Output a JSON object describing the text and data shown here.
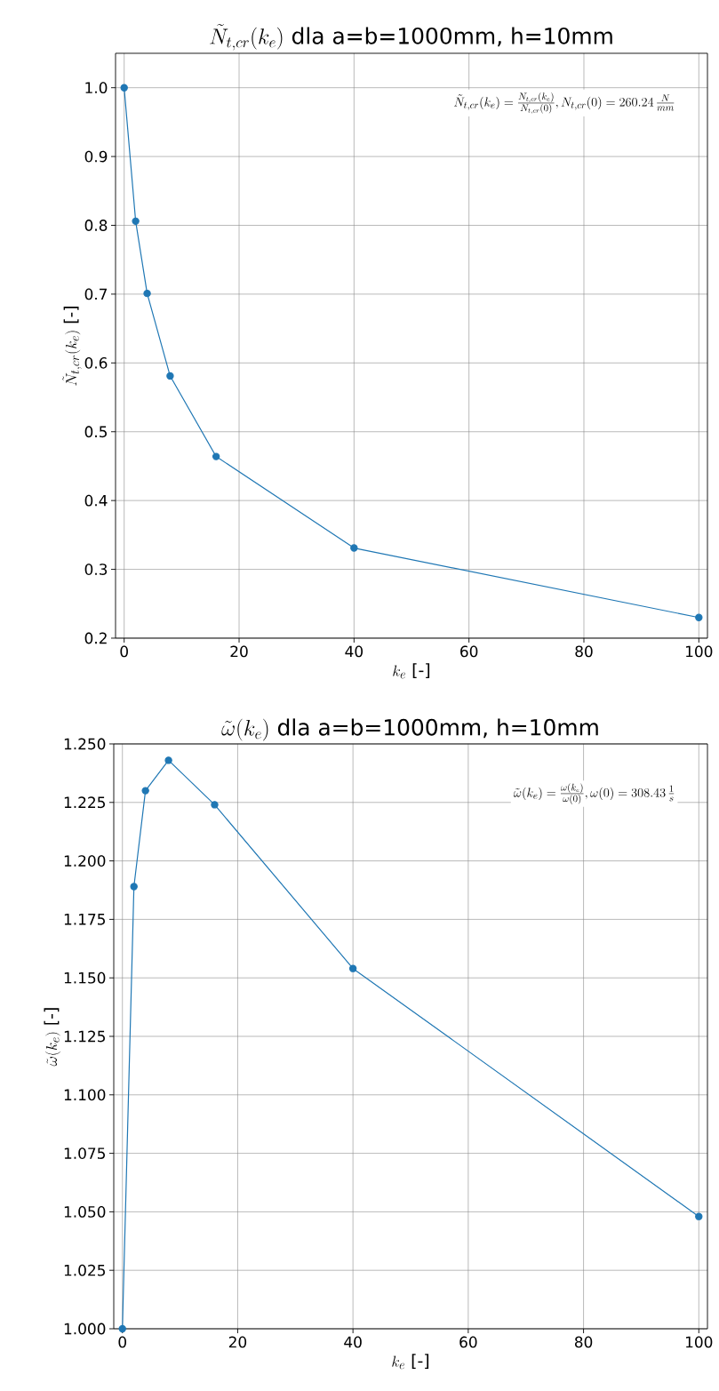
{
  "chart_data": [
    {
      "type": "line",
      "title": "\\tilde{N}_{t,cr}(k_e)\\text{ dla a=b=1000mm, h=10mm}",
      "xlabel": "k_e\\text{ [-]}",
      "ylabel": "\\tilde{N}_{t,cr}(k_e)\\text{ [-]}",
      "annotations": [
        "\\tilde{N}_{t,cr}(k_e) = \\frac{N_{t,cr}(k_e)}{N_{t,cr}(0)}, N_{t,cr}(0) = 260.24\\,\\frac{N}{mm}"
      ],
      "x": [
        0,
        2,
        4,
        8,
        16,
        40,
        100
      ],
      "series": [
        {
          "color": "#1f77b4",
          "values": [
            1.0,
            0.806,
            0.701,
            0.581,
            0.464,
            0.331,
            0.23
          ]
        }
      ],
      "xlim": [
        -1.5,
        101.5
      ],
      "ylim": [
        0.2,
        1.05
      ],
      "xticks": [
        0,
        20,
        40,
        60,
        80,
        100
      ],
      "yticks": [
        {
          "value": 0.2,
          "label": "0.2"
        },
        {
          "value": 0.3,
          "label": "0.3"
        },
        {
          "value": 0.4,
          "label": "0.4"
        },
        {
          "value": 0.5,
          "label": "0.5"
        },
        {
          "value": 0.6,
          "label": "0.6"
        },
        {
          "value": 0.7,
          "label": "0.7"
        },
        {
          "value": 0.8,
          "label": "0.8"
        },
        {
          "value": 0.9,
          "label": "0.9"
        },
        {
          "value": 1.0,
          "label": "1.0"
        }
      ],
      "grid": true,
      "marker": "circle",
      "line_style": "solid"
    },
    {
      "type": "line",
      "title": "\\tilde{\\omega}(k_e)\\text{ dla a=b=1000mm, h=10mm}",
      "xlabel": "k_e\\text{ [-]}",
      "ylabel": "\\tilde{\\omega}(k_e)\\text{ [-]}",
      "annotations": [
        "\\tilde{\\omega}(k_e) = \\frac{\\omega(k_e)}{\\omega(0)}, \\omega(0) = 308.43\\,\\frac{1}{s}"
      ],
      "x": [
        0,
        2,
        4,
        8,
        16,
        40,
        100
      ],
      "series": [
        {
          "color": "#1f77b4",
          "values": [
            1.0,
            1.189,
            1.23,
            1.243,
            1.224,
            1.154,
            1.048
          ]
        }
      ],
      "xlim": [
        -1.5,
        101.5
      ],
      "ylim": [
        1.0,
        1.25
      ],
      "xticks": [
        0,
        20,
        40,
        60,
        80,
        100
      ],
      "yticks": [
        {
          "value": 1.0,
          "label": "1.000"
        },
        {
          "value": 1.025,
          "label": "1.025"
        },
        {
          "value": 1.05,
          "label": "1.050"
        },
        {
          "value": 1.075,
          "label": "1.075"
        },
        {
          "value": 1.1,
          "label": "1.100"
        },
        {
          "value": 1.125,
          "label": "1.125"
        },
        {
          "value": 1.15,
          "label": "1.150"
        },
        {
          "value": 1.175,
          "label": "1.175"
        },
        {
          "value": 1.2,
          "label": "1.200"
        },
        {
          "value": 1.225,
          "label": "1.225"
        },
        {
          "value": 1.25,
          "label": "1.250"
        }
      ],
      "grid": true,
      "marker": "circle",
      "line_style": "solid"
    }
  ]
}
